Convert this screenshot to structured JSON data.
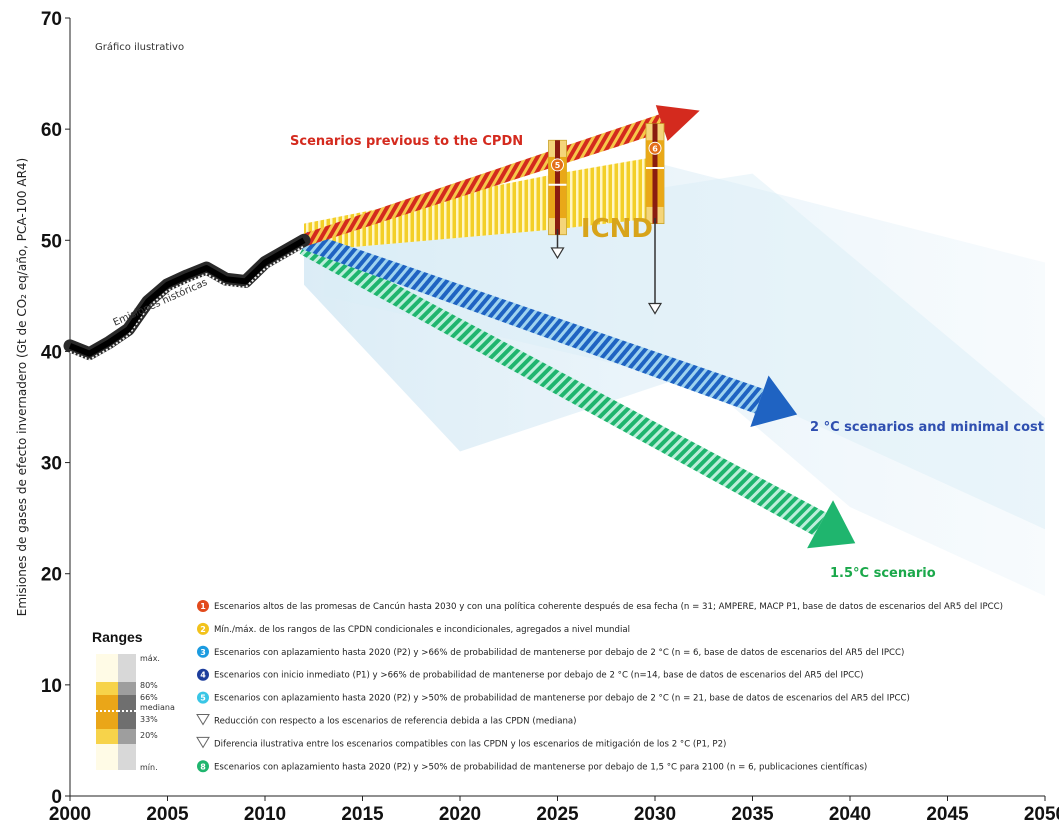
{
  "chart_data": {
    "type": "line",
    "note": "Gráfico ilustrativo",
    "ylabel": "Emisiones de gases de efecto invernadero (Gt de CO₂ eq/año, PCA-100 AR4)",
    "xlabel": "",
    "xlim": [
      2000,
      2050
    ],
    "ylim": [
      0,
      70
    ],
    "xticks": [
      "2000",
      "2005",
      "2010",
      "2015",
      "2020",
      "2025",
      "2030",
      "2035",
      "2040",
      "2045",
      "2050"
    ],
    "yticks": [
      "0",
      "10",
      "20",
      "30",
      "40",
      "50",
      "60",
      "70"
    ],
    "grid": false,
    "historical": {
      "label": "Emisiones históricas",
      "x": [
        2000,
        2001,
        2002,
        2003,
        2004,
        2005,
        2006,
        2007,
        2008,
        2009,
        2010,
        2011,
        2012
      ],
      "y": [
        40.5,
        39.8,
        40.8,
        42.0,
        44.5,
        46.0,
        46.8,
        47.5,
        46.5,
        46.3,
        48.0,
        49.0,
        50.0
      ]
    },
    "scenarios": [
      {
        "name": "Scenarios previous to the CPDN",
        "color": "#d42a1e",
        "x": [
          2012,
          2032
        ],
        "y": [
          50.0,
          61.5
        ]
      },
      {
        "name": "2 °C scenarios and minimal cost",
        "color": "#1f63c2",
        "x": [
          2012,
          2037
        ],
        "y": [
          50.0,
          34.5
        ]
      },
      {
        "name": "1.5°C scenario",
        "color": "#1fb56e",
        "x": [
          2012,
          2040
        ],
        "y": [
          49.5,
          23.0
        ]
      }
    ],
    "icnd_band": {
      "label": "ICND",
      "x": [
        2012,
        2025,
        2030
      ],
      "upper": [
        51.5,
        56.0,
        57.5
      ],
      "lower": [
        49.0,
        51.0,
        52.0
      ]
    },
    "range_bars": [
      {
        "number": "5",
        "x": 2025,
        "min": 50.5,
        "p20": 52.0,
        "median": 55.0,
        "p80": 57.5,
        "max": 59.0
      },
      {
        "number": "6",
        "x": 2030,
        "min": 51.5,
        "p20": 53.0,
        "median": 56.5,
        "p80": 59.0,
        "max": 60.5
      }
    ],
    "reduction_arrows": [
      {
        "x": 2025,
        "from": 51.0,
        "to": 48.5
      },
      {
        "x": 2030,
        "from": 52.0,
        "to": 43.5
      }
    ],
    "annotations": [
      {
        "text": "Scenarios previous to the CPDN",
        "color": "#d42a1e"
      },
      {
        "text": "2 °C scenarios and minimal cost",
        "color": "#2f4fb0"
      },
      {
        "text": "1.5°C scenario",
        "color": "#1aa84a"
      }
    ],
    "legend": {
      "placement": "bottom",
      "items": [
        {
          "num": "1",
          "color": "#e24a1c",
          "text": "Escenarios altos de las promesas de Cancún hasta 2030 y con una política coherente después de esa fecha (n = 31; AMPERE, MACP P1, base de datos de escenarios del AR5 del IPCC)"
        },
        {
          "num": "2",
          "color": "#f2c21b",
          "text": "Mín./máx. de los rangos de las CPDN condicionales e incondicionales, agregados a nivel mundial"
        },
        {
          "num": "3",
          "color": "#1b9be0",
          "text": "Escenarios con aplazamiento hasta 2020 (P2) y >66% de probabilidad de mantenerse por debajo de 2 °C (n = 6, base de datos de escenarios del AR5 del IPCC)"
        },
        {
          "num": "4",
          "color": "#1c3d9c",
          "text": "Escenarios con inicio inmediato (P1) y >66% de probabilidad de mantenerse por debajo de 2 °C (n=14, base de datos de escenarios del AR5 del IPCC)"
        },
        {
          "num": "5",
          "color": "#39c6e6",
          "text": "Escenarios con aplazamiento hasta 2020 (P2) y >50% de probabilidad de mantenerse por debajo de 2 °C (n = 21, base de datos de escenarios del AR5 del IPCC)"
        },
        {
          "num": "",
          "color": "#ffffff",
          "text": "Reducción con respecto a los escenarios de referencia debida a las CPDN (mediana)"
        },
        {
          "num": "",
          "color": "#ffffff",
          "text": "Diferencia ilustrativa entre los escenarios compatibles con las CPDN y los escenarios de mitigación de los 2 °C (P1, P2)"
        },
        {
          "num": "8",
          "color": "#1fb56e",
          "text": "Escenarios con aplazamiento hasta 2020 (P2) y >50% de probabilidad de mantenerse por debajo de 1,5 °C para 2100 (n = 6, publicaciones científicas)"
        }
      ]
    },
    "ranges_box": {
      "title": "Ranges",
      "labels": [
        "máx.",
        "80%",
        "66%",
        "mediana",
        "33%",
        "20%",
        "mín."
      ]
    },
    "icnd_label": "ICND"
  }
}
